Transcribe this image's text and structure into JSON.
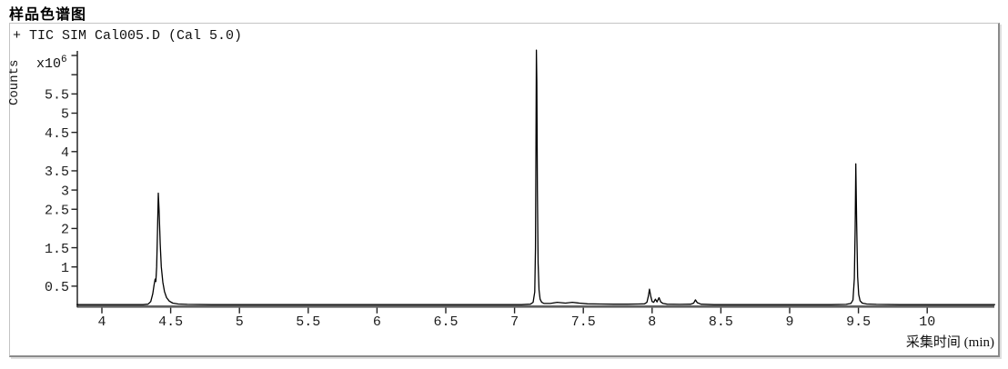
{
  "page": {
    "title": "样品色谱图"
  },
  "chart_data": {
    "type": "line",
    "title": "样品色谱图",
    "signal_label": "+ TIC SIM Cal005.D (Cal 5.0)",
    "ylabel": "Counts",
    "y_multiplier": {
      "base": "x10",
      "exp": "6"
    },
    "xlabel": "采集时间 (min)",
    "xlim": [
      3.82,
      10.49
    ],
    "ylim": [
      0,
      6.8
    ],
    "y_units_note": "counts x 10^6",
    "line_color": "#000000",
    "axis_color": "#5f5f5f",
    "tick_color": "#222222",
    "x_ticks": [
      {
        "value": 4,
        "label": "4"
      },
      {
        "value": 4.5,
        "label": "4.5"
      },
      {
        "value": 5,
        "label": "5"
      },
      {
        "value": 5.5,
        "label": "5.5"
      },
      {
        "value": 6,
        "label": "6"
      },
      {
        "value": 6.5,
        "label": "6.5"
      },
      {
        "value": 7,
        "label": "7"
      },
      {
        "value": 7.5,
        "label": "7.5"
      },
      {
        "value": 8,
        "label": "8"
      },
      {
        "value": 8.5,
        "label": "8.5"
      },
      {
        "value": 9,
        "label": "9"
      },
      {
        "value": 9.5,
        "label": "9.5"
      },
      {
        "value": 10,
        "label": "10"
      }
    ],
    "y_ticks": [
      {
        "value": 0.5,
        "label": "0.5"
      },
      {
        "value": 1,
        "label": "1"
      },
      {
        "value": 1.5,
        "label": "1.5"
      },
      {
        "value": 2,
        "label": "2"
      },
      {
        "value": 2.5,
        "label": "2.5"
      },
      {
        "value": 3,
        "label": "3"
      },
      {
        "value": 3.5,
        "label": "3.5"
      },
      {
        "value": 4,
        "label": "4"
      },
      {
        "value": 4.5,
        "label": "4.5"
      },
      {
        "value": 5,
        "label": "5"
      },
      {
        "value": 5.5,
        "label": "5.5"
      },
      {
        "value": 6,
        "label": ""
      },
      {
        "value": 6.5,
        "label": ""
      }
    ],
    "peaks": [
      {
        "rt_min": 4.41,
        "height_e6": 2.9
      },
      {
        "rt_min": 7.16,
        "height_e6": 6.6
      },
      {
        "rt_min": 7.98,
        "height_e6": 0.42
      },
      {
        "rt_min": 8.05,
        "height_e6": 0.2
      },
      {
        "rt_min": 8.32,
        "height_e6": 0.15
      },
      {
        "rt_min": 9.48,
        "height_e6": 3.7
      }
    ],
    "trace": [
      [
        3.82,
        0.02
      ],
      [
        4.1,
        0.02
      ],
      [
        4.3,
        0.02
      ],
      [
        4.335,
        0.03
      ],
      [
        4.355,
        0.1
      ],
      [
        4.37,
        0.3
      ],
      [
        4.38,
        0.55
      ],
      [
        4.387,
        0.68
      ],
      [
        4.392,
        0.62
      ],
      [
        4.398,
        1.0
      ],
      [
        4.404,
        1.9
      ],
      [
        4.41,
        2.92
      ],
      [
        4.416,
        2.45
      ],
      [
        4.424,
        1.6
      ],
      [
        4.432,
        1.0
      ],
      [
        4.443,
        0.6
      ],
      [
        4.455,
        0.36
      ],
      [
        4.47,
        0.2
      ],
      [
        4.49,
        0.11
      ],
      [
        4.515,
        0.06
      ],
      [
        4.555,
        0.035
      ],
      [
        4.62,
        0.025
      ],
      [
        4.8,
        0.02
      ],
      [
        5.2,
        0.02
      ],
      [
        5.6,
        0.02
      ],
      [
        6.0,
        0.02
      ],
      [
        6.4,
        0.02
      ],
      [
        6.8,
        0.02
      ],
      [
        7.05,
        0.02
      ],
      [
        7.115,
        0.03
      ],
      [
        7.135,
        0.08
      ],
      [
        7.147,
        0.35
      ],
      [
        7.152,
        1.5
      ],
      [
        7.156,
        4.5
      ],
      [
        7.159,
        6.64
      ],
      [
        7.162,
        5.8
      ],
      [
        7.166,
        3.0
      ],
      [
        7.171,
        1.1
      ],
      [
        7.178,
        0.4
      ],
      [
        7.186,
        0.16
      ],
      [
        7.197,
        0.08
      ],
      [
        7.215,
        0.05
      ],
      [
        7.26,
        0.05
      ],
      [
        7.31,
        0.08
      ],
      [
        7.37,
        0.06
      ],
      [
        7.42,
        0.08
      ],
      [
        7.47,
        0.06
      ],
      [
        7.53,
        0.04
      ],
      [
        7.62,
        0.035
      ],
      [
        7.72,
        0.03
      ],
      [
        7.82,
        0.03
      ],
      [
        7.9,
        0.035
      ],
      [
        7.945,
        0.04
      ],
      [
        7.962,
        0.08
      ],
      [
        7.973,
        0.24
      ],
      [
        7.981,
        0.42
      ],
      [
        7.99,
        0.24
      ],
      [
        8.0,
        0.1
      ],
      [
        8.012,
        0.08
      ],
      [
        8.024,
        0.16
      ],
      [
        8.036,
        0.09
      ],
      [
        8.05,
        0.2
      ],
      [
        8.063,
        0.09
      ],
      [
        8.08,
        0.05
      ],
      [
        8.11,
        0.03
      ],
      [
        8.2,
        0.025
      ],
      [
        8.28,
        0.03
      ],
      [
        8.302,
        0.06
      ],
      [
        8.315,
        0.145
      ],
      [
        8.328,
        0.07
      ],
      [
        8.355,
        0.03
      ],
      [
        8.45,
        0.02
      ],
      [
        8.7,
        0.02
      ],
      [
        9.0,
        0.02
      ],
      [
        9.3,
        0.02
      ],
      [
        9.41,
        0.025
      ],
      [
        9.445,
        0.05
      ],
      [
        9.46,
        0.14
      ],
      [
        9.47,
        0.7
      ],
      [
        9.476,
        2.0
      ],
      [
        9.481,
        3.68
      ],
      [
        9.487,
        2.2
      ],
      [
        9.494,
        0.75
      ],
      [
        9.502,
        0.28
      ],
      [
        9.512,
        0.12
      ],
      [
        9.528,
        0.06
      ],
      [
        9.56,
        0.035
      ],
      [
        9.63,
        0.025
      ],
      [
        9.8,
        0.02
      ],
      [
        10.1,
        0.02
      ],
      [
        10.49,
        0.02
      ]
    ]
  }
}
